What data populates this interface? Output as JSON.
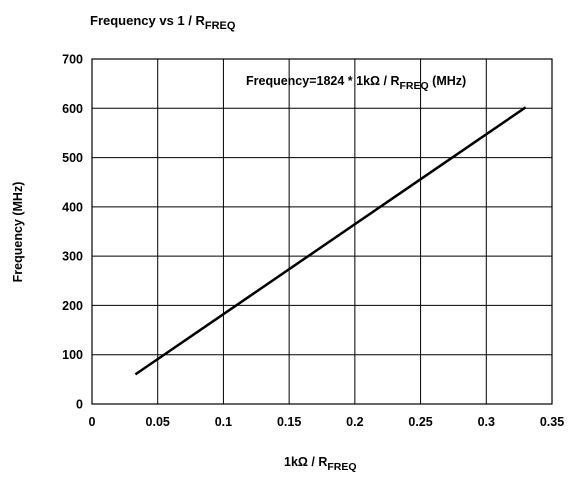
{
  "chart_data": {
    "type": "line",
    "title": {
      "main": "Frequency vs 1 / R",
      "sub": "FREQ"
    },
    "xlabel": {
      "main": "1kΩ / R",
      "sub": "FREQ"
    },
    "ylabel": "Frequency (MHz)",
    "annotation": {
      "main": "Frequency=1824 * 1kΩ / R",
      "sub": "FREQ",
      "tail": " (MHz)"
    },
    "xlim": [
      0,
      0.35
    ],
    "ylim": [
      0,
      700
    ],
    "x_ticks": [
      0,
      0.05,
      0.1,
      0.15,
      0.2,
      0.25,
      0.3,
      0.35
    ],
    "x_tick_labels": [
      "0",
      "0.05",
      "0.1",
      "0.15",
      "0.2",
      "0.25",
      "0.3",
      "0.35"
    ],
    "y_ticks": [
      0,
      100,
      200,
      300,
      400,
      500,
      600,
      700
    ],
    "y_tick_labels": [
      "0",
      "100",
      "200",
      "300",
      "400",
      "500",
      "600",
      "700"
    ],
    "grid": true,
    "series": [
      {
        "x": [
          0.033,
          0.33
        ],
        "y": [
          60,
          602
        ]
      }
    ]
  }
}
